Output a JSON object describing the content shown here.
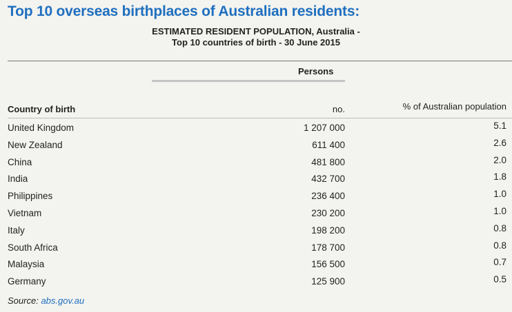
{
  "heading": "Top 10 overseas birthplaces of Australian residents:",
  "table": {
    "title_line1": "ESTIMATED RESIDENT POPULATION, Australia -",
    "title_line2": "Top 10 countries of birth - 30 June 2015",
    "group_label": "Persons",
    "columns": {
      "country": "Country of birth",
      "number": "no.",
      "percent": "% of Australian population"
    },
    "rows": [
      {
        "country": "United Kingdom",
        "persons": "1 207 000",
        "pct": "5.1"
      },
      {
        "country": "New Zealand",
        "persons": "611 400",
        "pct": "2.6"
      },
      {
        "country": "China",
        "persons": "481 800",
        "pct": "2.0"
      },
      {
        "country": "India",
        "persons": "432 700",
        "pct": "1.8"
      },
      {
        "country": "Philippines",
        "persons": "236 400",
        "pct": "1.0"
      },
      {
        "country": "Vietnam",
        "persons": "230 200",
        "pct": "1.0"
      },
      {
        "country": "Italy",
        "persons": "198 200",
        "pct": "0.8"
      },
      {
        "country": "South Africa",
        "persons": "178 700",
        "pct": "0.8"
      },
      {
        "country": "Malaysia",
        "persons": "156 500",
        "pct": "0.7"
      },
      {
        "country": "Germany",
        "persons": "125 900",
        "pct": "0.5"
      }
    ]
  },
  "source": {
    "label": "Source:",
    "link_text": "abs.gov.au"
  },
  "colors": {
    "heading": "#1f6fbf",
    "link": "#1f6fbf",
    "background": "#f3f3ef"
  }
}
